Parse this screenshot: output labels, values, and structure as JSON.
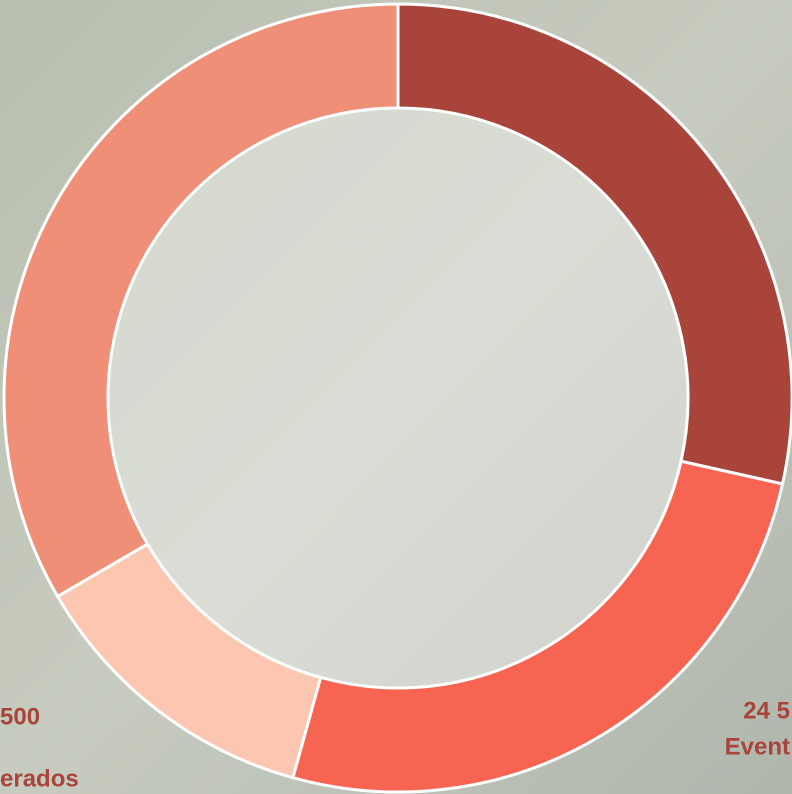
{
  "chart_data": {
    "type": "donut",
    "values": [
      28.5,
      25.8,
      12.3,
      33.4
    ],
    "colors": [
      "#a9443b",
      "#f76552",
      "#fcc6b1",
      "#f08f78"
    ],
    "annotations": [
      "24 5",
      "Event",
      "500",
      "erados"
    ]
  }
}
